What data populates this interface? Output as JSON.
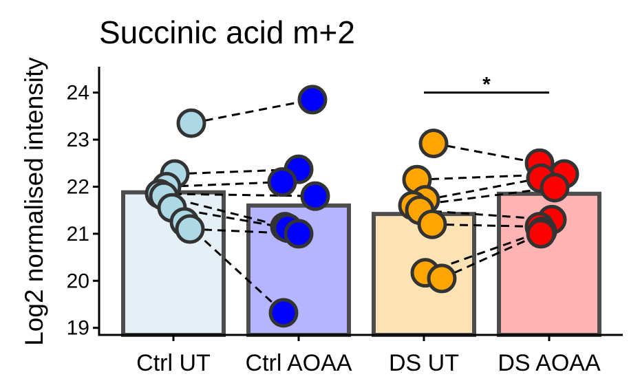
{
  "chart_data": {
    "type": "bar",
    "title": "Succinic acid m+2",
    "ylabel": "Log2 normalised intensity",
    "xlabel": "",
    "ylim": [
      18.85,
      24.55
    ],
    "yticks": [
      19,
      20,
      21,
      22,
      23,
      24
    ],
    "categories": [
      "Ctrl UT",
      "Ctrl AOAA",
      "DS UT",
      "DS AOAA"
    ],
    "bar_fill_colors": [
      "#e4f0f6",
      "#b4b4ff",
      "#fde3b3",
      "#ffb3b3"
    ],
    "point_colors": [
      "#add8e6",
      "#0000ff",
      "#ffa500",
      "#ff0000"
    ],
    "bar_outline_color": "#4d4d4d",
    "values": [
      21.88,
      21.6,
      21.42,
      21.85
    ],
    "points": [
      [
        23.35,
        22.27,
        22.0,
        21.85,
        21.8,
        21.55,
        21.25,
        21.1
      ],
      [
        23.85,
        22.37,
        22.1,
        21.8,
        21.15,
        21.12,
        21.0,
        19.32
      ],
      [
        22.92,
        22.15,
        21.72,
        21.6,
        21.5,
        21.2,
        20.17,
        20.05
      ],
      [
        22.5,
        22.27,
        22.18,
        21.98,
        21.3,
        21.15,
        21.05,
        21.0
      ]
    ],
    "pairs": [
      {
        "from_group": 0,
        "from_value": 23.35,
        "to_group": 1,
        "to_value": 23.85
      },
      {
        "from_group": 0,
        "from_value": 22.27,
        "to_group": 1,
        "to_value": 22.37
      },
      {
        "from_group": 0,
        "from_value": 22.0,
        "to_group": 1,
        "to_value": 22.1
      },
      {
        "from_group": 0,
        "from_value": 21.85,
        "to_group": 1,
        "to_value": 21.8
      },
      {
        "from_group": 0,
        "from_value": 21.8,
        "to_group": 1,
        "to_value": 21.15
      },
      {
        "from_group": 0,
        "from_value": 21.55,
        "to_group": 1,
        "to_value": 21.12
      },
      {
        "from_group": 0,
        "from_value": 21.1,
        "to_group": 1,
        "to_value": 21.0
      },
      {
        "from_group": 0,
        "from_value": 21.25,
        "to_group": 1,
        "to_value": 19.32
      },
      {
        "from_group": 2,
        "from_value": 22.92,
        "to_group": 3,
        "to_value": 22.5
      },
      {
        "from_group": 2,
        "from_value": 22.15,
        "to_group": 3,
        "to_value": 22.27
      },
      {
        "from_group": 2,
        "from_value": 21.72,
        "to_group": 3,
        "to_value": 22.18
      },
      {
        "from_group": 2,
        "from_value": 21.6,
        "to_group": 3,
        "to_value": 21.98
      },
      {
        "from_group": 2,
        "from_value": 21.5,
        "to_group": 3,
        "to_value": 21.3
      },
      {
        "from_group": 2,
        "from_value": 21.2,
        "to_group": 3,
        "to_value": 21.15
      },
      {
        "from_group": 2,
        "from_value": 20.17,
        "to_group": 3,
        "to_value": 21.05
      },
      {
        "from_group": 2,
        "from_value": 20.05,
        "to_group": 3,
        "to_value": 21.0
      }
    ],
    "significance": [
      {
        "from_group": 2,
        "to_group": 3,
        "y": 24.0,
        "label": "*"
      }
    ],
    "grid": false,
    "legend": "none"
  }
}
